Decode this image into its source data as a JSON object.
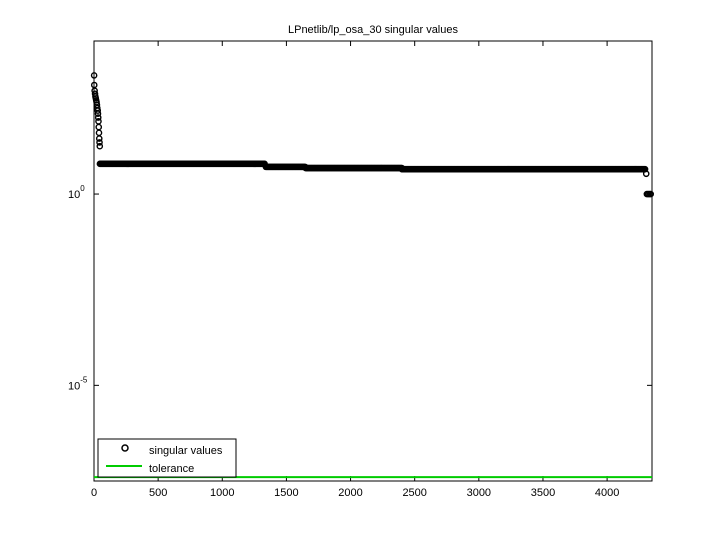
{
  "chart_data": {
    "type": "scatter",
    "title": "LPnetlib/lp_osa_30 singular values",
    "xlabel": "",
    "ylabel": "",
    "xlim": [
      0,
      4350
    ],
    "ylim_log10": [
      -7.5,
      4.0
    ],
    "y_scale": "log",
    "grid": false,
    "legend_position": "bottom-left",
    "x_ticks": [
      0,
      500,
      1000,
      1500,
      2000,
      2500,
      3000,
      3500,
      4000
    ],
    "x_tick_labels": [
      "0",
      "500",
      "1000",
      "1500",
      "2000",
      "2500",
      "3000",
      "3500",
      "4000"
    ],
    "y_ticks_log10": [
      0,
      -5
    ],
    "y_tick_labels": [
      {
        "base": "10",
        "exp": "0"
      },
      {
        "base": "10",
        "exp": "-5"
      }
    ],
    "series": [
      {
        "name": "singular values",
        "marker": "circle",
        "color": "#000000",
        "points": [
          [
            1,
            3.1
          ],
          [
            2,
            2.85
          ],
          [
            5,
            2.7
          ],
          [
            8,
            2.62
          ],
          [
            11,
            2.55
          ],
          [
            14,
            2.5
          ],
          [
            17,
            2.45
          ],
          [
            20,
            2.4
          ],
          [
            23,
            2.33
          ],
          [
            26,
            2.25
          ],
          [
            29,
            2.18
          ],
          [
            31,
            2.1
          ],
          [
            33,
            2.0
          ],
          [
            35,
            1.9
          ],
          [
            37,
            1.75
          ],
          [
            39,
            1.6
          ],
          [
            41,
            1.45
          ],
          [
            43,
            1.35
          ],
          [
            45,
            1.25
          ]
        ],
        "segments": [
          {
            "x_start": 46,
            "x_end": 1330,
            "log10_y": 0.79
          },
          {
            "x_start": 1340,
            "x_end": 1650,
            "log10_y": 0.71
          },
          {
            "x_start": 1650,
            "x_end": 2400,
            "log10_y": 0.68
          },
          {
            "x_start": 2400,
            "x_end": 4300,
            "log10_y": 0.65
          }
        ],
        "tail_points": [
          [
            4305,
            0.53
          ],
          [
            4310,
            0.0
          ],
          [
            4320,
            0.0
          ],
          [
            4330,
            0.0
          ],
          [
            4340,
            0.0
          ]
        ]
      },
      {
        "name": "tolerance",
        "type": "line",
        "color": "#00cc00",
        "log10_y": -7.4
      }
    ]
  }
}
